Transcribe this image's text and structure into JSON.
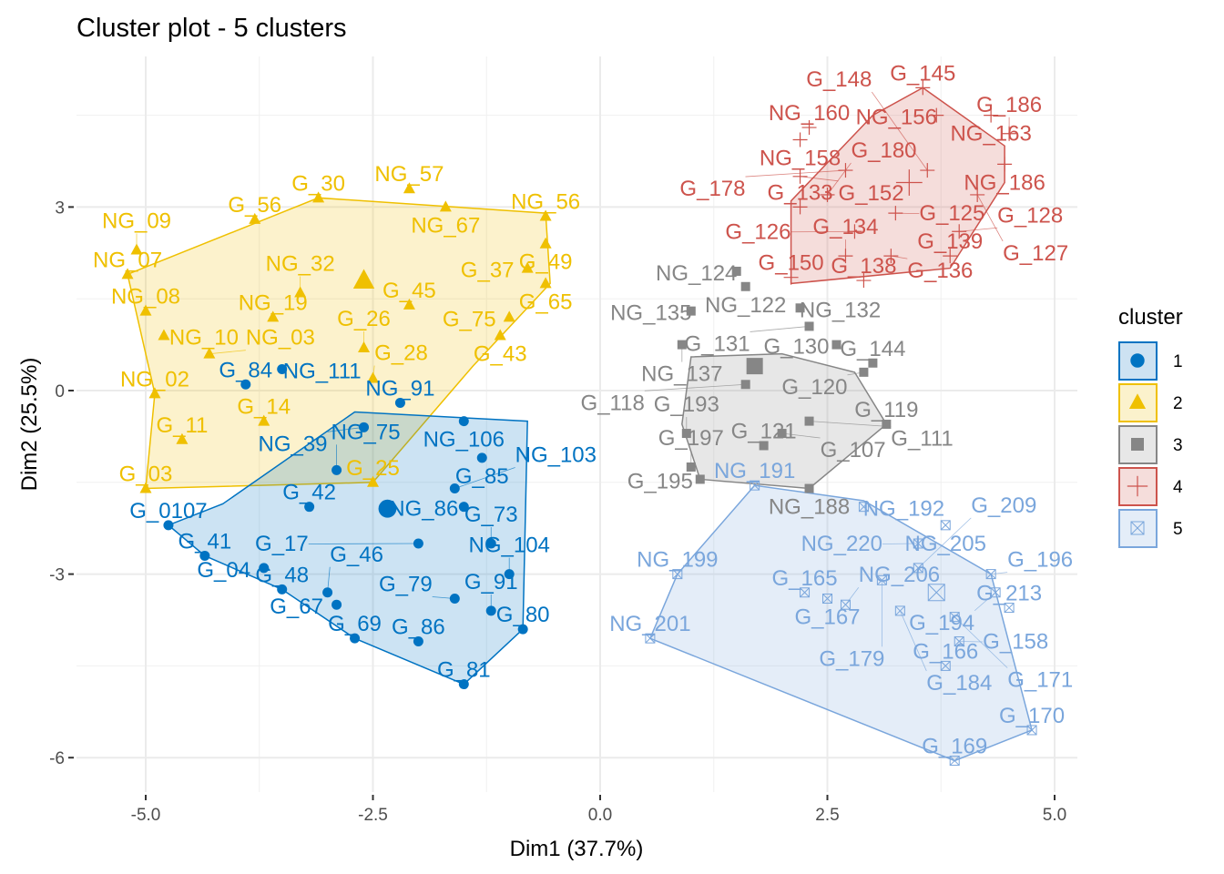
{
  "chart_data": {
    "type": "scatter",
    "title": "Cluster plot - 5 clusters",
    "xlabel": "Dim1 (37.7%)",
    "ylabel": "Dim2 (25.5%)",
    "xlim": [
      -6.0,
      5.2
    ],
    "ylim": [
      -6.6,
      5.5
    ],
    "x_ticks": [
      -5.0,
      -2.5,
      0.0,
      2.5,
      5.0
    ],
    "x_tick_labels": [
      "-5.0",
      "-2.5",
      "0.0",
      "2.5",
      "5.0"
    ],
    "y_ticks": [
      3,
      0,
      -3,
      -6
    ],
    "y_tick_labels": [
      "3",
      "0",
      "-3",
      "-6"
    ],
    "grid": true,
    "legend": {
      "title": "cluster",
      "placement": "right",
      "entries": [
        {
          "label": "1",
          "color": "#0073C2",
          "fill": "#CDE2F2",
          "shape": "circle"
        },
        {
          "label": "2",
          "color": "#EFC000",
          "fill": "#FBF2CC",
          "shape": "triangle"
        },
        {
          "label": "3",
          "color": "#868686",
          "fill": "#E7E7E7",
          "shape": "square"
        },
        {
          "label": "4",
          "color": "#CD534C",
          "fill": "#F5DDDB",
          "shape": "plus"
        },
        {
          "label": "5",
          "color": "#7AA6DC",
          "fill": "#E4EDF8",
          "shape": "boxcross"
        }
      ]
    },
    "series": [
      {
        "name": "1",
        "color": "#0073C2",
        "centroid": [
          -2.34,
          -1.93
        ],
        "hull": [
          [
            -4.15,
            -1.85
          ],
          [
            -2.7,
            -0.35
          ],
          [
            -0.8,
            -0.5
          ],
          [
            -0.85,
            -3.9
          ],
          [
            -1.5,
            -4.8
          ],
          [
            -2.7,
            -4.05
          ],
          [
            -3.5,
            -3.25
          ],
          [
            -4.35,
            -2.7
          ],
          [
            -4.75,
            -2.2
          ]
        ],
        "points": [
          {
            "x": -4.75,
            "y": -2.2,
            "label": "G_0107"
          },
          {
            "x": -4.35,
            "y": -2.7,
            "label": "G_41"
          },
          {
            "x": -3.5,
            "y": -3.25,
            "label": "G_48"
          },
          {
            "x": -2.7,
            "y": -4.05,
            "label": "G_69"
          },
          {
            "x": -1.5,
            "y": -4.8,
            "label": "G_81"
          },
          {
            "x": -0.85,
            "y": -3.9,
            "label": "G_80"
          },
          {
            "x": -1.2,
            "y": -2.5,
            "label": "G_73"
          },
          {
            "x": -1.0,
            "y": -3.0,
            "label": "NG_104"
          },
          {
            "x": -1.3,
            "y": -1.1,
            "label": "G_85"
          },
          {
            "x": -1.5,
            "y": -0.5,
            "label": "NG_106"
          },
          {
            "x": -2.2,
            "y": -0.2,
            "label": "NG_91"
          },
          {
            "x": -3.5,
            "y": 0.35,
            "label": "NG_111"
          },
          {
            "x": -3.9,
            "y": 0.1,
            "label": "G_84"
          },
          {
            "x": -1.6,
            "y": -1.6,
            "label": "NG_103"
          },
          {
            "x": -1.5,
            "y": -1.9,
            "label": "NG_86"
          },
          {
            "x": -3.2,
            "y": -1.9,
            "label": "G_42"
          },
          {
            "x": -3.0,
            "y": -3.3,
            "label": "G_46"
          },
          {
            "x": -2.9,
            "y": -3.5,
            "label": "G_67"
          },
          {
            "x": -1.6,
            "y": -3.4,
            "label": "G_79"
          },
          {
            "x": -1.2,
            "y": -3.6,
            "label": "G_91"
          },
          {
            "x": -2.0,
            "y": -4.1,
            "label": "G_86"
          },
          {
            "x": -3.7,
            "y": -2.9,
            "label": "G_04"
          },
          {
            "x": -2.0,
            "y": -2.5,
            "label": "G_17"
          },
          {
            "x": -2.6,
            "y": -0.6,
            "label": "NG_39"
          },
          {
            "x": -2.9,
            "y": -1.3,
            "label": "NG_75"
          }
        ]
      },
      {
        "name": "2",
        "color": "#EFC000",
        "centroid": [
          -2.6,
          1.8
        ],
        "hull": [
          [
            -5.2,
            1.9
          ],
          [
            -3.1,
            3.15
          ],
          [
            -0.6,
            2.9
          ],
          [
            -0.55,
            1.75
          ],
          [
            -1.4,
            0.4
          ],
          [
            -2.5,
            -1.5
          ],
          [
            -5.0,
            -1.6
          ],
          [
            -4.9,
            -0.05
          ]
        ],
        "points": [
          {
            "x": -3.1,
            "y": 3.15,
            "label": "G_30"
          },
          {
            "x": -2.1,
            "y": 3.3,
            "label": "NG_57"
          },
          {
            "x": -1.7,
            "y": 3.0,
            "label": "NG_67"
          },
          {
            "x": -0.6,
            "y": 2.85,
            "label": "NG_56"
          },
          {
            "x": -0.6,
            "y": 2.4,
            "label": "G_49"
          },
          {
            "x": -0.8,
            "y": 2.0,
            "label": "G_37"
          },
          {
            "x": -0.6,
            "y": 1.75,
            "label": "G_65"
          },
          {
            "x": -1.0,
            "y": 1.2,
            "label": "G_75"
          },
          {
            "x": -1.1,
            "y": 0.9,
            "label": "G_43"
          },
          {
            "x": -3.8,
            "y": 2.8,
            "label": "G_56"
          },
          {
            "x": -5.1,
            "y": 2.3,
            "label": "NG_09"
          },
          {
            "x": -5.2,
            "y": 1.9,
            "label": "NG_07"
          },
          {
            "x": -5.0,
            "y": 1.3,
            "label": "NG_08"
          },
          {
            "x": -4.8,
            "y": 0.9,
            "label": "NG_10"
          },
          {
            "x": -4.3,
            "y": 0.6,
            "label": "NG_03"
          },
          {
            "x": -4.9,
            "y": -0.05,
            "label": "NG_02"
          },
          {
            "x": -4.6,
            "y": -0.8,
            "label": "G_11"
          },
          {
            "x": -5.0,
            "y": -1.6,
            "label": "G_03"
          },
          {
            "x": -3.7,
            "y": -0.5,
            "label": "G_14"
          },
          {
            "x": -2.1,
            "y": 1.4,
            "label": "G_45"
          },
          {
            "x": -2.6,
            "y": 0.7,
            "label": "G_26"
          },
          {
            "x": -2.5,
            "y": 0.2,
            "label": "G_28"
          },
          {
            "x": -3.3,
            "y": 1.6,
            "label": "NG_32"
          },
          {
            "x": -3.6,
            "y": 1.2,
            "label": "NG_19"
          },
          {
            "x": -2.5,
            "y": -1.5,
            "label": "G_25"
          }
        ]
      },
      {
        "name": "3",
        "color": "#868686",
        "centroid": [
          1.7,
          0.4
        ],
        "hull": [
          [
            1.1,
            -1.45
          ],
          [
            2.3,
            -1.6
          ],
          [
            3.15,
            -0.55
          ],
          [
            2.8,
            0.3
          ],
          [
            2.0,
            0.6
          ],
          [
            1.0,
            0.55
          ],
          [
            0.9,
            -0.55
          ]
        ],
        "points": [
          {
            "x": 1.5,
            "y": 1.95,
            "label": "NG_124"
          },
          {
            "x": 1.6,
            "y": 1.7,
            "label": "NG_122"
          },
          {
            "x": 2.2,
            "y": 1.35,
            "label": "NG_132"
          },
          {
            "x": 2.3,
            "y": 1.05,
            "label": "G_131"
          },
          {
            "x": 2.6,
            "y": 0.75,
            "label": "G_130"
          },
          {
            "x": 3.0,
            "y": 0.45,
            "label": "G_144"
          },
          {
            "x": 2.9,
            "y": 0.3,
            "label": "G_120"
          },
          {
            "x": 3.15,
            "y": -0.55,
            "label": "G_119"
          },
          {
            "x": 2.3,
            "y": -0.5,
            "label": "G_111"
          },
          {
            "x": 1.0,
            "y": 1.3,
            "label": "NG_135"
          },
          {
            "x": 0.9,
            "y": 0.75,
            "label": "NG_137"
          },
          {
            "x": 0.95,
            "y": -0.7,
            "label": "G_193"
          },
          {
            "x": 1.0,
            "y": -1.25,
            "label": "G_197"
          },
          {
            "x": 1.1,
            "y": -1.45,
            "label": "G_195"
          },
          {
            "x": 2.0,
            "y": -0.7,
            "label": "G_107"
          },
          {
            "x": 2.3,
            "y": -1.6,
            "label": "NG_188"
          },
          {
            "x": 1.6,
            "y": 0.1,
            "label": "G_118"
          },
          {
            "x": 1.8,
            "y": -0.9,
            "label": "G_121"
          }
        ]
      },
      {
        "name": "4",
        "color": "#CD534C",
        "centroid": [
          3.4,
          3.4
        ],
        "hull": [
          [
            3.55,
            4.95
          ],
          [
            4.45,
            4.0
          ],
          [
            4.45,
            3.4
          ],
          [
            3.85,
            2.0
          ],
          [
            2.1,
            1.75
          ],
          [
            2.1,
            3.1
          ],
          [
            3.0,
            4.5
          ]
        ],
        "points": [
          {
            "x": 3.55,
            "y": 4.95,
            "label": "G_145"
          },
          {
            "x": 3.7,
            "y": 4.5,
            "label": "NG_156"
          },
          {
            "x": 4.3,
            "y": 4.5,
            "label": "NG_163"
          },
          {
            "x": 4.5,
            "y": 4.2,
            "label": "G_186"
          },
          {
            "x": 4.45,
            "y": 3.7,
            "label": "NG_186"
          },
          {
            "x": 4.15,
            "y": 3.2,
            "label": "G_127"
          },
          {
            "x": 3.95,
            "y": 2.6,
            "label": "G_128"
          },
          {
            "x": 3.85,
            "y": 2.2,
            "label": "G_139"
          },
          {
            "x": 3.6,
            "y": 3.6,
            "label": "G_148"
          },
          {
            "x": 3.25,
            "y": 2.9,
            "label": "G_125"
          },
          {
            "x": 2.2,
            "y": 3.5,
            "label": "G_152"
          },
          {
            "x": 2.7,
            "y": 3.6,
            "label": "G_178"
          },
          {
            "x": 2.5,
            "y": 3.2,
            "label": "G_180"
          },
          {
            "x": 2.2,
            "y": 3.0,
            "label": "G_133"
          },
          {
            "x": 2.8,
            "y": 2.6,
            "label": "G_126"
          },
          {
            "x": 2.7,
            "y": 2.2,
            "label": "G_134"
          },
          {
            "x": 3.2,
            "y": 2.2,
            "label": "G_136"
          },
          {
            "x": 2.9,
            "y": 1.8,
            "label": "G_138"
          },
          {
            "x": 2.1,
            "y": 1.85,
            "label": "G_150"
          },
          {
            "x": 2.2,
            "y": 4.1,
            "label": "NG_158"
          },
          {
            "x": 2.3,
            "y": 4.3,
            "label": "NG_160"
          }
        ]
      },
      {
        "name": "5",
        "color": "#7AA6DC",
        "centroid": [
          3.7,
          -3.3
        ],
        "hull": [
          [
            0.55,
            -4.05
          ],
          [
            0.85,
            -3.0
          ],
          [
            1.7,
            -1.55
          ],
          [
            2.9,
            -1.8
          ],
          [
            4.3,
            -3.0
          ],
          [
            4.75,
            -5.55
          ],
          [
            3.9,
            -6.05
          ]
        ],
        "points": [
          {
            "x": 0.55,
            "y": -4.05,
            "label": "NG_201"
          },
          {
            "x": 0.85,
            "y": -3.0,
            "label": "NG_199"
          },
          {
            "x": 1.7,
            "y": -1.55,
            "label": "NG_191"
          },
          {
            "x": 2.9,
            "y": -1.9,
            "label": "NG_192"
          },
          {
            "x": 3.8,
            "y": -2.2,
            "label": "NG_205"
          },
          {
            "x": 3.5,
            "y": -2.5,
            "label": "NG_220"
          },
          {
            "x": 4.3,
            "y": -3.0,
            "label": "G_196"
          },
          {
            "x": 4.35,
            "y": -3.3,
            "label": "G_194"
          },
          {
            "x": 4.5,
            "y": -3.55,
            "label": "G_213"
          },
          {
            "x": 3.9,
            "y": -3.7,
            "label": "G_171"
          },
          {
            "x": 3.95,
            "y": -4.1,
            "label": "G_158"
          },
          {
            "x": 3.8,
            "y": -4.5,
            "label": "G_166"
          },
          {
            "x": 4.75,
            "y": -5.55,
            "label": "G_170"
          },
          {
            "x": 3.9,
            "y": -6.05,
            "label": "G_169"
          },
          {
            "x": 2.25,
            "y": -3.3,
            "label": "G_165"
          },
          {
            "x": 2.5,
            "y": -3.4,
            "label": "G_167"
          },
          {
            "x": 3.1,
            "y": -3.1,
            "label": "G_179"
          },
          {
            "x": 3.3,
            "y": -3.6,
            "label": "G_184"
          },
          {
            "x": 3.5,
            "y": -2.9,
            "label": "G_209"
          },
          {
            "x": 2.7,
            "y": -3.5,
            "label": "NG_206"
          }
        ]
      }
    ]
  }
}
